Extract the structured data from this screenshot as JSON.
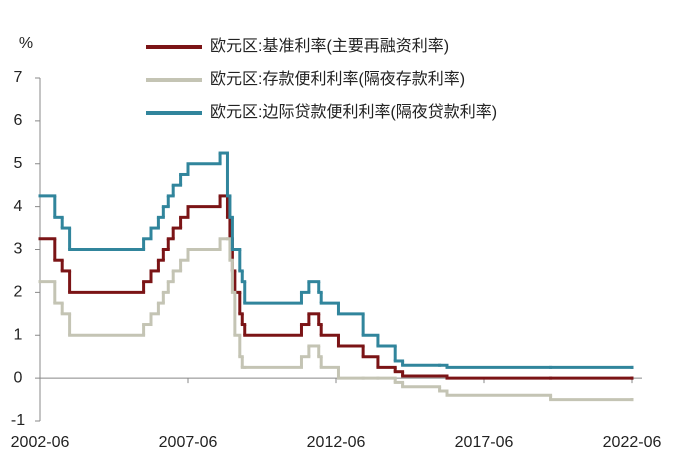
{
  "chart_data": {
    "type": "step-line",
    "y_unit": "%",
    "x": [
      "2002-06",
      "2002-12",
      "2003-03",
      "2003-06",
      "2005-12",
      "2006-03",
      "2006-06",
      "2006-08",
      "2006-10",
      "2006-12",
      "2007-03",
      "2007-06",
      "2008-07",
      "2008-10",
      "2008-11",
      "2008-12",
      "2009-01",
      "2009-03",
      "2009-04",
      "2009-05",
      "2011-04",
      "2011-07",
      "2011-11",
      "2011-12",
      "2012-07",
      "2013-05",
      "2013-11",
      "2014-06",
      "2014-09",
      "2015-12",
      "2016-03",
      "2019-09",
      "2022-06"
    ],
    "series": [
      {
        "name": "欧元区:基准利率(主要再融资利率)",
        "color": "#7b1416",
        "values": [
          3.25,
          2.75,
          2.5,
          2.0,
          2.25,
          2.5,
          2.75,
          3.0,
          3.25,
          3.5,
          3.75,
          4.0,
          4.25,
          3.75,
          3.25,
          2.5,
          2.0,
          1.5,
          1.25,
          1.0,
          1.25,
          1.5,
          1.25,
          1.0,
          0.75,
          0.5,
          0.25,
          0.15,
          0.05,
          0.05,
          0.0,
          0.0,
          0.0
        ]
      },
      {
        "name": "欧元区:存款便利利率(隔夜存款利率)",
        "color": "#c4c4b4",
        "values": [
          2.25,
          1.75,
          1.5,
          1.0,
          1.25,
          1.5,
          1.75,
          2.0,
          2.25,
          2.5,
          2.75,
          3.0,
          3.25,
          3.25,
          2.75,
          2.0,
          1.0,
          0.5,
          0.25,
          0.25,
          0.5,
          0.75,
          0.5,
          0.25,
          0.0,
          0.0,
          0.0,
          -0.1,
          -0.2,
          -0.3,
          -0.4,
          -0.5,
          -0.5
        ]
      },
      {
        "name": "欧元区:边际贷款便利利率(隔夜贷款利率)",
        "color": "#31859c",
        "values": [
          4.25,
          3.75,
          3.5,
          3.0,
          3.25,
          3.5,
          3.75,
          4.0,
          4.25,
          4.5,
          4.75,
          5.0,
          5.25,
          4.25,
          3.75,
          3.0,
          3.0,
          2.5,
          2.25,
          1.75,
          2.0,
          2.25,
          2.0,
          1.75,
          1.5,
          1.0,
          0.75,
          0.4,
          0.3,
          0.3,
          0.25,
          0.25,
          0.25
        ]
      }
    ],
    "xlim": [
      "2002-06",
      "2022-06"
    ],
    "xticks": [
      "2002-06",
      "2007-06",
      "2012-06",
      "2017-06",
      "2022-06"
    ],
    "ylim": [
      -1,
      7
    ],
    "yticks": [
      -1,
      0,
      1,
      2,
      3,
      4,
      5,
      6,
      7
    ],
    "legend": "top"
  }
}
